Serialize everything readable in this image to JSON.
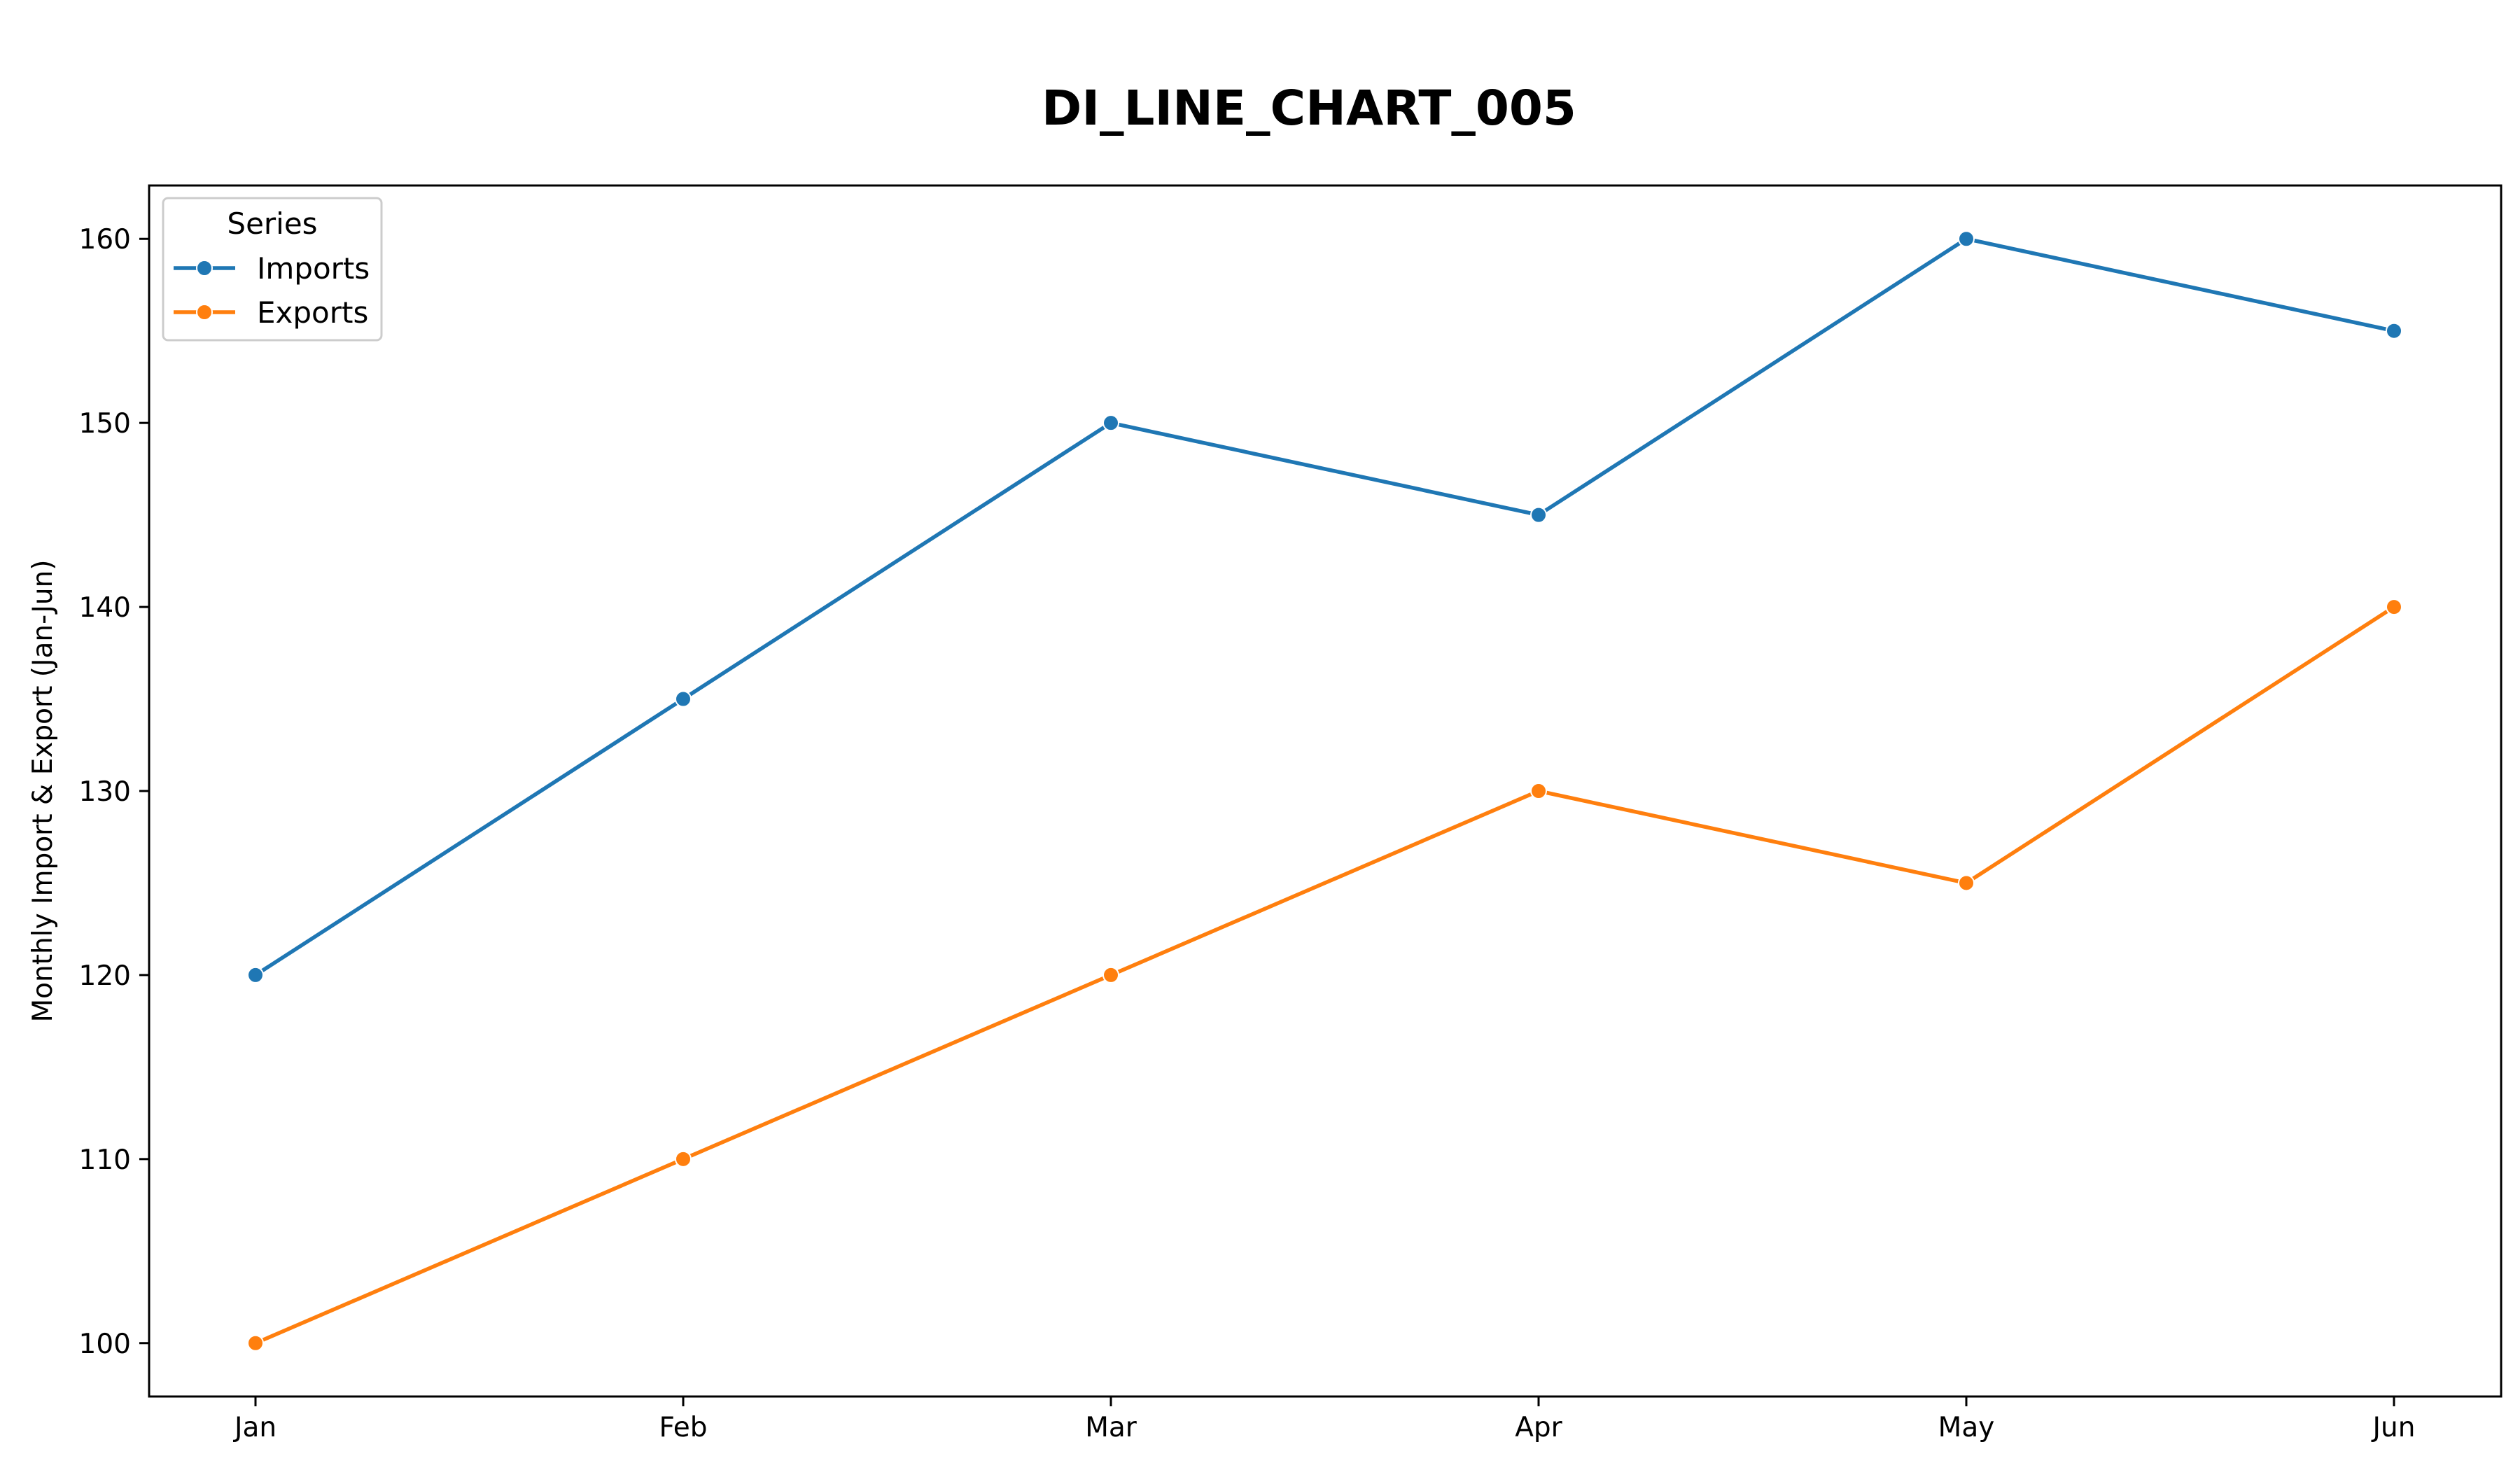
{
  "chart_data": {
    "type": "line",
    "title": "DI_LINE_CHART_005",
    "xlabel": "",
    "ylabel": "Monthly Import & Export (Jan-Jun)",
    "categories": [
      "Jan",
      "Feb",
      "Mar",
      "Apr",
      "May",
      "Jun"
    ],
    "ylim": [
      97.1,
      162.9
    ],
    "yticks": [
      100,
      110,
      120,
      130,
      140,
      150,
      160
    ],
    "grid": false,
    "legend": {
      "title": "Series",
      "placement": "top-left"
    },
    "series": [
      {
        "name": "Imports",
        "color": "#1f77b4",
        "marker": "circle",
        "values": [
          120,
          135,
          150,
          145,
          160,
          155
        ]
      },
      {
        "name": "Exports",
        "color": "#ff7f0e",
        "marker": "circle",
        "values": [
          100,
          110,
          120,
          130,
          125,
          140
        ]
      }
    ]
  }
}
